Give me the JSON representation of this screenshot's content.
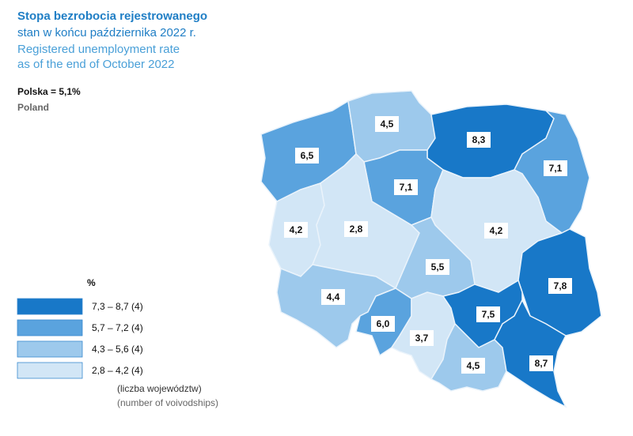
{
  "header": {
    "title_pl": "Stopa bezrobocia rejestrowanego",
    "subtitle_pl": "stan w końcu października 2022 r.",
    "title_en": "Registered unemployment rate",
    "subtitle_en": "as of the end of October 2022"
  },
  "summary": {
    "pl": "Polska = 5,1%",
    "en": "Poland"
  },
  "chart_data": {
    "type": "choropleth",
    "values": [
      6.5,
      4.5,
      8.3,
      7.1,
      7.1,
      4.2,
      2.8,
      4.2,
      5.5,
      7.8,
      4.4,
      6.0,
      3.7,
      7.5,
      4.5,
      8.7
    ],
    "value_labels": [
      "6,5",
      "4,5",
      "8,3",
      "7,1",
      "7,1",
      "4,2",
      "2,8",
      "4,2",
      "5,5",
      "7,8",
      "4,4",
      "6,0",
      "3,7",
      "7,5",
      "4,5",
      "8,7"
    ],
    "legend": {
      "unit": "%",
      "bins": [
        {
          "range": [
            7.3,
            8.7
          ],
          "label": "7,3 – 8,7 (4)",
          "color": "#1878c8"
        },
        {
          "range": [
            5.7,
            7.2
          ],
          "label": "5,7 – 7,2 (4)",
          "color": "#5aa3de"
        },
        {
          "range": [
            4.3,
            5.6
          ],
          "label": "4,3 – 5,6 (4)",
          "color": "#9dc9ec"
        },
        {
          "range": [
            2.8,
            4.2
          ],
          "label": "2,8 – 4,2 (4)",
          "color": "#d2e6f6"
        }
      ],
      "note_pl": "(liczba województw)",
      "note_en": "(number of voivodships)"
    }
  }
}
